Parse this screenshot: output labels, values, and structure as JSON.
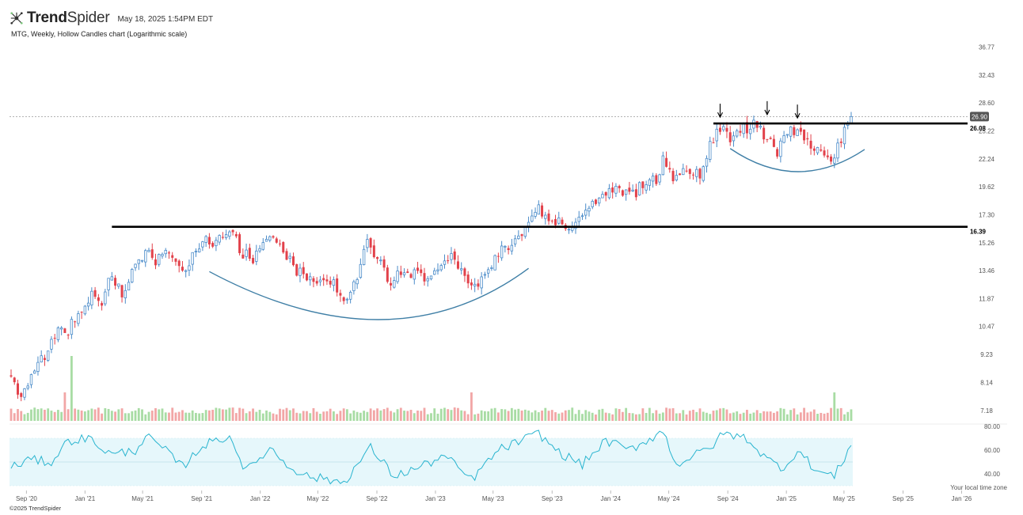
{
  "header": {
    "brand_bold": "Trend",
    "brand_light": "Spider",
    "timestamp": "May 18, 2025 1:54PM EDT",
    "subtitle": "MTG, Weekly, Hollow Candles chart (Logarithmic scale)"
  },
  "footer": {
    "copyright": "©2025 TrendSpider",
    "timezone_note": "Your local time zone"
  },
  "colors": {
    "up": "#4a8bc9",
    "down": "#e2414a",
    "vol_up": "#a8dca4",
    "vol_down": "#f2a6a6",
    "rsi_line": "#28b4cf",
    "rsi_band": "#e6f7fb",
    "arc": "#3f7fa6",
    "level": "#000000",
    "price_tag": "#555555"
  },
  "chart_data": {
    "type": "candlestick",
    "scale": "log",
    "symbol": "MTG",
    "interval": "Weekly",
    "y_ticks": [
      "36.77",
      "32.43",
      "28.60",
      "25.22",
      "22.24",
      "19.62",
      "17.30",
      "15.26",
      "13.46",
      "11.87",
      "10.47",
      "9.23",
      "8.14",
      "7.18"
    ],
    "x_ticks": [
      "Sep '20",
      "Jan '21",
      "May '21",
      "Sep '21",
      "Jan '22",
      "May '22",
      "Sep '22",
      "Jan '23",
      "May '23",
      "Sep '23",
      "Jan '24",
      "May '24",
      "Sep '24",
      "Jan '25",
      "May '25",
      "Sep '25",
      "Jan '26"
    ],
    "last_price": "26.90",
    "levels": [
      {
        "label": "26.08",
        "value": 26.08
      },
      {
        "label": "16.39",
        "value": 16.39
      }
    ],
    "close_path": [
      [
        "2020-07-31",
        8.2
      ],
      [
        "2020-08-21",
        7.6
      ],
      [
        "2020-09-18",
        8.6
      ],
      [
        "2020-10-16",
        9.3
      ],
      [
        "2020-11-06",
        10.6
      ],
      [
        "2020-11-20",
        9.9
      ],
      [
        "2020-12-18",
        11.2
      ],
      [
        "2021-01-15",
        12.0
      ],
      [
        "2021-02-05",
        11.8
      ],
      [
        "2021-02-26",
        13.3
      ],
      [
        "2021-03-19",
        12.2
      ],
      [
        "2021-04-09",
        13.2
      ],
      [
        "2021-05-07",
        14.8
      ],
      [
        "2021-05-28",
        14.1
      ],
      [
        "2021-06-25",
        14.5
      ],
      [
        "2021-07-23",
        13.5
      ],
      [
        "2021-08-20",
        14.8
      ],
      [
        "2021-09-10",
        15.3
      ],
      [
        "2021-10-08",
        15.5
      ],
      [
        "2021-10-29",
        16.2
      ],
      [
        "2021-11-26",
        14.5
      ],
      [
        "2021-12-17",
        14.2
      ],
      [
        "2022-01-07",
        15.5
      ],
      [
        "2022-01-21",
        16.0
      ],
      [
        "2022-02-18",
        14.8
      ],
      [
        "2022-03-18",
        13.5
      ],
      [
        "2022-04-15",
        12.8
      ],
      [
        "2022-05-13",
        13.0
      ],
      [
        "2022-06-10",
        12.5
      ],
      [
        "2022-06-24",
        11.6
      ],
      [
        "2022-07-22",
        13.2
      ],
      [
        "2022-08-12",
        15.2
      ],
      [
        "2022-09-02",
        14.4
      ],
      [
        "2022-09-30",
        12.7
      ],
      [
        "2022-10-21",
        13.5
      ],
      [
        "2022-11-11",
        13.3
      ],
      [
        "2022-12-09",
        12.9
      ],
      [
        "2023-01-06",
        13.6
      ],
      [
        "2023-02-03",
        14.3
      ],
      [
        "2023-03-17",
        12.4
      ],
      [
        "2023-04-14",
        13.3
      ],
      [
        "2023-05-12",
        14.4
      ],
      [
        "2023-06-09",
        15.4
      ],
      [
        "2023-07-14",
        16.3
      ],
      [
        "2023-08-04",
        17.8
      ],
      [
        "2023-08-25",
        17.0
      ],
      [
        "2023-09-22",
        16.6
      ],
      [
        "2023-10-20",
        16.4
      ],
      [
        "2023-11-17",
        17.5
      ],
      [
        "2023-12-15",
        19.2
      ],
      [
        "2024-01-19",
        19.5
      ],
      [
        "2024-02-16",
        18.9
      ],
      [
        "2024-03-15",
        20.2
      ],
      [
        "2024-04-05",
        20.0
      ],
      [
        "2024-04-19",
        22.0
      ],
      [
        "2024-05-10",
        20.3
      ],
      [
        "2024-06-07",
        21.3
      ],
      [
        "2024-07-05",
        20.8
      ],
      [
        "2024-07-26",
        23.8
      ],
      [
        "2024-08-16",
        25.5
      ],
      [
        "2024-09-06",
        24.6
      ],
      [
        "2024-10-04",
        25.5
      ],
      [
        "2024-11-01",
        26.0
      ],
      [
        "2024-11-22",
        24.2
      ],
      [
        "2024-12-13",
        23.1
      ],
      [
        "2025-01-10",
        25.2
      ],
      [
        "2025-02-07",
        24.3
      ],
      [
        "2025-03-07",
        23.0
      ],
      [
        "2025-04-04",
        22.1
      ],
      [
        "2025-04-25",
        24.5
      ],
      [
        "2025-05-16",
        26.9
      ]
    ],
    "volume_spikes": [
      {
        "date": "2020-12-04",
        "level": "high"
      },
      {
        "date": "2020-11-20",
        "level": "medium"
      },
      {
        "date": "2023-03-17",
        "level": "medium"
      },
      {
        "date": "2025-04-11",
        "level": "medium"
      }
    ],
    "rsi": {
      "ticks": [
        "80.00",
        "60.00",
        "40.00"
      ],
      "band": [
        30,
        70
      ],
      "path": [
        [
          "2020-07-31",
          45
        ],
        [
          "2020-09-04",
          52
        ],
        [
          "2020-10-23",
          50
        ],
        [
          "2020-11-27",
          68
        ],
        [
          "2021-01-08",
          70
        ],
        [
          "2021-02-26",
          56
        ],
        [
          "2021-04-16",
          60
        ],
        [
          "2021-05-07",
          72
        ],
        [
          "2021-06-11",
          62
        ],
        [
          "2021-07-23",
          46
        ],
        [
          "2021-09-03",
          64
        ],
        [
          "2021-10-29",
          72
        ],
        [
          "2021-12-03",
          42
        ],
        [
          "2022-01-21",
          62
        ],
        [
          "2022-02-25",
          48
        ],
        [
          "2022-04-08",
          38
        ],
        [
          "2022-06-24",
          33
        ],
        [
          "2022-08-19",
          62
        ],
        [
          "2022-10-07",
          38
        ],
        [
          "2022-11-25",
          45
        ],
        [
          "2023-01-20",
          55
        ],
        [
          "2023-03-17",
          35
        ],
        [
          "2023-05-12",
          60
        ],
        [
          "2023-08-04",
          74
        ],
        [
          "2023-09-15",
          58
        ],
        [
          "2023-11-03",
          48
        ],
        [
          "2023-12-22",
          68
        ],
        [
          "2024-02-09",
          60
        ],
        [
          "2024-04-19",
          76
        ],
        [
          "2024-05-17",
          48
        ],
        [
          "2024-07-26",
          62
        ],
        [
          "2024-08-23",
          74
        ],
        [
          "2024-10-11",
          70
        ],
        [
          "2024-11-22",
          52
        ],
        [
          "2024-12-27",
          45
        ],
        [
          "2025-01-24",
          60
        ],
        [
          "2025-03-07",
          42
        ],
        [
          "2025-04-11",
          38
        ],
        [
          "2025-05-16",
          64
        ]
      ]
    },
    "annotations": [
      {
        "kind": "arrow",
        "date": "2024-08-16",
        "value": 25.8
      },
      {
        "kind": "arrow",
        "date": "2024-11-22",
        "value": 26.1
      },
      {
        "kind": "arrow",
        "date": "2025-01-24",
        "value": 25.7
      },
      {
        "kind": "arc",
        "from": [
          "2021-09-17",
          13.4
        ],
        "mid": [
          "2022-09-09",
          10.8
        ],
        "to": [
          "2023-07-14",
          13.6
        ]
      },
      {
        "kind": "arc",
        "from": [
          "2024-09-06",
          23.3
        ],
        "mid": [
          "2025-01-24",
          21.0
        ],
        "to": [
          "2025-06-13",
          23.2
        ]
      }
    ]
  }
}
